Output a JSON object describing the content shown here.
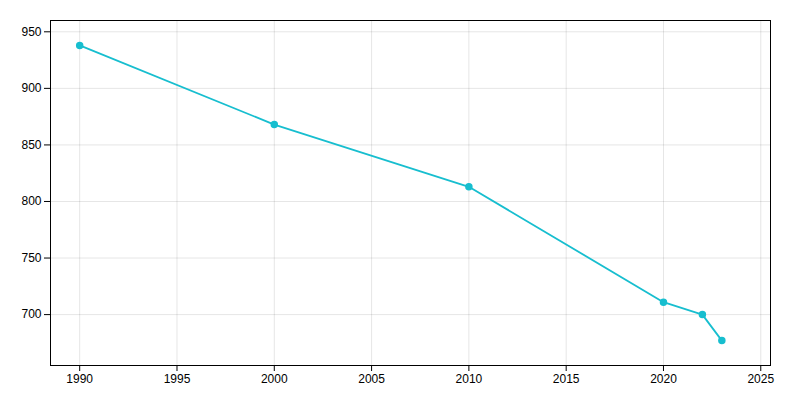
{
  "chart_data": {
    "type": "line",
    "x": [
      1990,
      2000,
      2010,
      2020,
      2022,
      2023
    ],
    "values": [
      938,
      868,
      813,
      711,
      700,
      677
    ],
    "color": "#17becf",
    "marker": "circle",
    "xlim": [
      1988.5,
      2025.5
    ],
    "ylim": [
      655,
      960
    ],
    "xticks": [
      1990,
      1995,
      2000,
      2005,
      2010,
      2015,
      2020,
      2025
    ],
    "yticks": [
      700,
      750,
      800,
      850,
      900,
      950
    ],
    "grid": true
  }
}
